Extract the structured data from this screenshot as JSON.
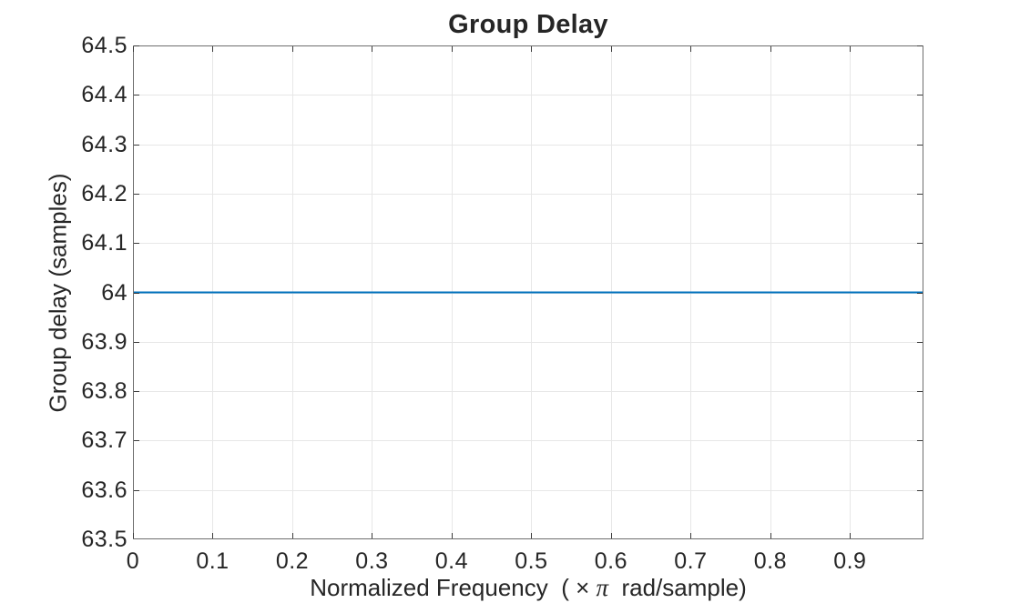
{
  "chart_data": {
    "type": "line",
    "title": "Group Delay",
    "xlabel": "Normalized Frequency  ( × π  rad/sample)",
    "xlabel_parts": {
      "prefix": "Normalized Frequency  ( × ",
      "pi": "π",
      "suffix": "  rad/sample)"
    },
    "ylabel": "Group delay (samples)",
    "xlim": [
      0,
      0.9921875
    ],
    "ylim": [
      63.5,
      64.5
    ],
    "x_ticks": [
      0,
      0.1,
      0.2,
      0.3,
      0.4,
      0.5,
      0.6,
      0.7,
      0.8,
      0.9
    ],
    "x_tick_labels": [
      "0",
      "0.1",
      "0.2",
      "0.3",
      "0.4",
      "0.5",
      "0.6",
      "0.7",
      "0.8",
      "0.9"
    ],
    "y_ticks": [
      63.5,
      63.6,
      63.7,
      63.8,
      63.9,
      64.0,
      64.1,
      64.2,
      64.3,
      64.4,
      64.5
    ],
    "y_tick_labels": [
      "63.5",
      "63.6",
      "63.7",
      "63.8",
      "63.9",
      "64",
      "64.1",
      "64.2",
      "64.3",
      "64.4",
      "64.5"
    ],
    "grid": true,
    "legend": null,
    "series": [
      {
        "name": "group-delay",
        "color": "#0072BD",
        "x": [
          0,
          0.9921875
        ],
        "y": [
          64,
          64
        ]
      }
    ],
    "colors": {
      "axis_box": "#6e6e6e",
      "tick_mark": "#3a3a3a",
      "grid_line": "#e7e7e7",
      "text": "#262626",
      "line": "#0072BD",
      "background": "#ffffff"
    }
  }
}
